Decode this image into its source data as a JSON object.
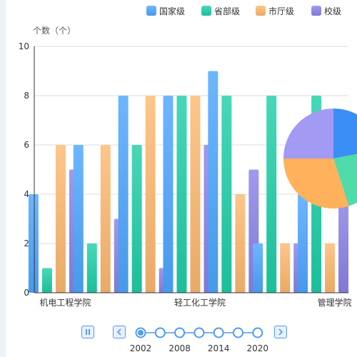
{
  "chart_data": {
    "type": "bar",
    "ylabel": "个数（个）",
    "ylim": [
      0,
      10
    ],
    "yticks": [
      "0",
      "2",
      "4",
      "6",
      "8",
      "10"
    ],
    "categories": [
      "机电工程学院",
      "",
      "",
      "轻工化工学院",
      "",
      "",
      "管理学院"
    ],
    "legend_position": "top-right",
    "series": [
      {
        "name": "国家级",
        "color": "#4da6ff",
        "values": [
          4,
          6,
          8,
          8,
          9,
          2,
          4
        ]
      },
      {
        "name": "省部级",
        "color": "#1ecfa7",
        "values": [
          1,
          2,
          6,
          8,
          8,
          8,
          8
        ]
      },
      {
        "name": "市厅级",
        "color": "#fdb970",
        "values": [
          6,
          6,
          8,
          8,
          4,
          2,
          2
        ]
      },
      {
        "name": "校级",
        "color": "#8a84e8",
        "values": [
          5,
          3,
          1,
          6,
          5,
          2,
          4
        ]
      }
    ],
    "pie": {
      "values": [
        22,
        23,
        30,
        25
      ],
      "colors": [
        "#3a8ef6",
        "#4fdcaa",
        "#ffb15c",
        "#a39af3"
      ]
    }
  },
  "timeline": {
    "tick_labels": [
      "2002",
      "2008",
      "2014",
      "2020"
    ],
    "point_count": 7,
    "selected_index": 0
  },
  "icons": {
    "play_pause": "pause-icon",
    "prev": "chevron-left-icon",
    "next": "chevron-right-icon"
  }
}
